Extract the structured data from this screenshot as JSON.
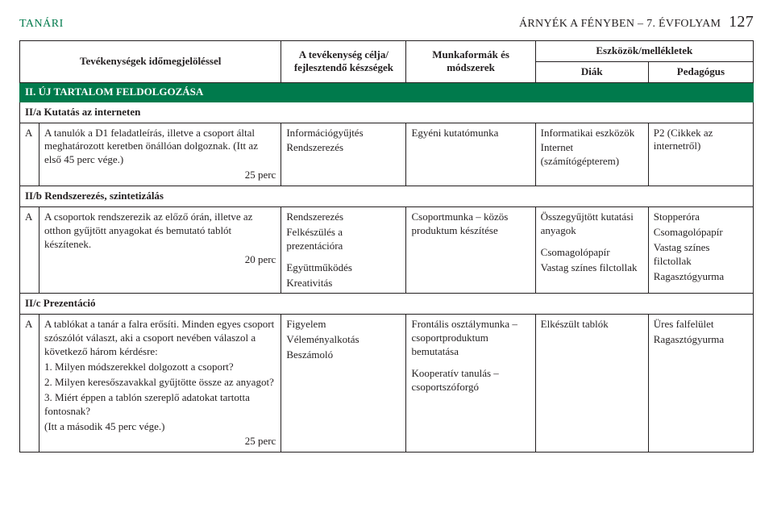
{
  "header": {
    "left": "TANÁRI",
    "right_title": "ÁRNYÉK A FÉNYBEN – 7. ÉVFOLYAM",
    "page_number": "127"
  },
  "table_head": {
    "col1": "Tevékenységek időmegjelöléssel",
    "col2": "A tevékenység célja/ fejlesztendő készségek",
    "col3": "Munkaformák és módszerek",
    "tools_header": "Eszközök/mellékletek",
    "col4": "Diák",
    "col5": "Pedagógus"
  },
  "section2": {
    "title": "II. ÚJ TARTALOM FELDOLGOZÁSA",
    "sub_a": {
      "title": "II/a Kutatás az interneten",
      "row": {
        "letter": "A",
        "activity": "A tanulók a D1 feladatleírás, illetve a csoport által meghatározott keretben önállóan dolgoznak. (Itt az első 45 perc vége.)",
        "time": "25 perc",
        "goal": "Információgyűjtés\nRendszerezés",
        "method": "Egyéni kutatómunka",
        "student": "Informatikai eszközök\nInternet (számítógépterem)",
        "teacher": "P2 (Cikkek az internetről)"
      }
    },
    "sub_b": {
      "title": "II/b Rendszerezés, szintetizálás",
      "row": {
        "letter": "A",
        "activity": "A csoportok rendszerezik az előző órán, illetve az otthon gyűjtött anyagokat és bemutató tablót készítenek.",
        "time": "20 perc",
        "goal": "Rendszerezés\nFelkészülés a prezentációra\n\nEgyüttműködés\nKreativitás",
        "method": "Csoportmunka – közös produktum készítése",
        "student": "Összegyűjtött kutatási anyagok\n\nCsomagolópapír\nVastag színes filctollak",
        "teacher": "Stopperóra\nCsomagolópapír\nVastag színes filctollak\nRagasztógyurma"
      }
    },
    "sub_c": {
      "title": "II/c Prezentáció",
      "row": {
        "letter": "A",
        "activity": "A tablókat a tanár a falra erősíti. Minden egyes csoport szószólót választ, aki a csoport nevében válaszol a következő három kérdésre:\n1. Milyen módszerekkel dolgozott a csoport?\n2. Milyen keresőszavakkal gyűjtötte össze az anyagot?\n3. Miért éppen a tablón szereplő adatokat tartotta fontosnak?\n(Itt a második 45 perc vége.)",
        "time": "25 perc",
        "goal": "Figyelem\nVéleményalkotás\nBeszámoló",
        "method": "Frontális osztálymunka – csoportproduktum bemutatása\n\nKooperatív tanulás – csoportszóforgó",
        "student": "Elkészült tablók",
        "teacher": "Üres falfelület\nRagasztógyurma"
      }
    }
  }
}
